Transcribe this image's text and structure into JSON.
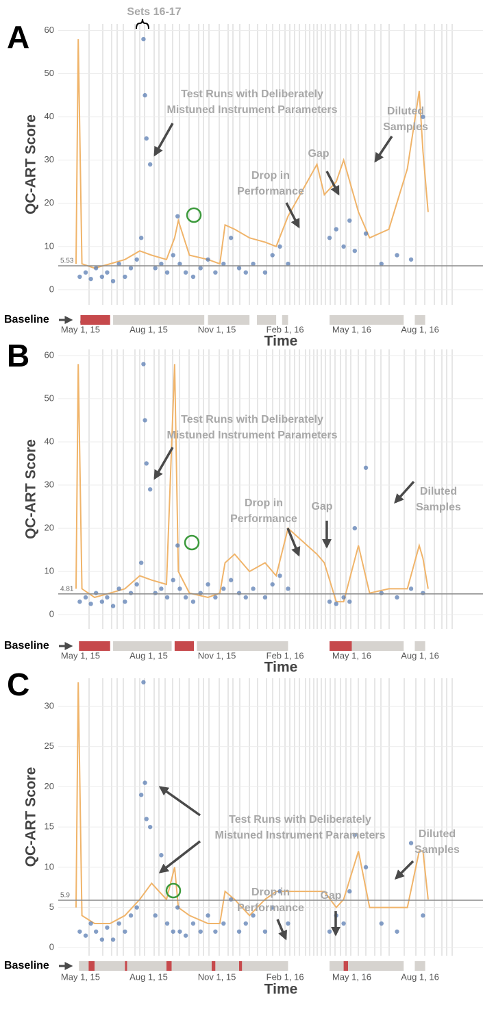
{
  "chart_data": [
    {
      "type": "scatter",
      "panel": "A",
      "y_label": "QC-ART Score",
      "x_label": "Time",
      "baseline_label": "Baseline",
      "xlim": [
        "2015-04-01",
        "2016-10-25"
      ],
      "xticks": [
        {
          "value": "2015-05-01",
          "label": "May 1, 15"
        },
        {
          "value": "2015-08-01",
          "label": "Aug 1, 15"
        },
        {
          "value": "2015-11-01",
          "label": "Nov 1, 15"
        },
        {
          "value": "2016-02-01",
          "label": "Feb 1, 16"
        },
        {
          "value": "2016-05-01",
          "label": "May 1, 16"
        },
        {
          "value": "2016-08-01",
          "label": "Aug 1, 16"
        }
      ],
      "ylim": [
        -3.5,
        61.5
      ],
      "yticks": [
        0,
        10,
        20,
        30,
        40,
        50,
        60
      ],
      "grid": true,
      "threshold": 5.53,
      "series": [
        {
          "type": "point",
          "color": "#5b7db3",
          "x": [
            "2015-04-30",
            "2015-05-08",
            "2015-05-15",
            "2015-05-22",
            "2015-05-30",
            "2015-06-06",
            "2015-06-14",
            "2015-06-22",
            "2015-06-30",
            "2015-07-08",
            "2015-07-16",
            "2015-07-22",
            "2015-07-25",
            "2015-07-27",
            "2015-07-29",
            "2015-08-03",
            "2015-08-10",
            "2015-08-18",
            "2015-08-26",
            "2015-09-03",
            "2015-09-09",
            "2015-09-12",
            "2015-09-20",
            "2015-09-30",
            "2015-10-10",
            "2015-10-20",
            "2015-10-30",
            "2015-11-10",
            "2015-11-20",
            "2015-12-01",
            "2015-12-10",
            "2015-12-20",
            "2016-01-05",
            "2016-01-15",
            "2016-01-25",
            "2016-02-05",
            "2016-04-01",
            "2016-04-10",
            "2016-04-20",
            "2016-04-28",
            "2016-05-05",
            "2016-05-20",
            "2016-06-10",
            "2016-07-01",
            "2016-07-20",
            "2016-08-05"
          ],
          "values": [
            3,
            4,
            2.5,
            5,
            3,
            4,
            2,
            6,
            3,
            5,
            7,
            12,
            58,
            45,
            35,
            29,
            5,
            6,
            4,
            8,
            17,
            6,
            4,
            3,
            5,
            7,
            4,
            6,
            12,
            5,
            4,
            6,
            4,
            8,
            10,
            6,
            12,
            14,
            10,
            16,
            9,
            13,
            6,
            8,
            7,
            40
          ]
        },
        {
          "type": "line",
          "color": "#f0b46a",
          "x": [
            "2015-04-25",
            "2015-04-28",
            "2015-05-03",
            "2015-05-20",
            "2015-06-10",
            "2015-06-30",
            "2015-07-20",
            "2015-08-05",
            "2015-08-25",
            "2015-09-05",
            "2015-09-10",
            "2015-09-25",
            "2015-10-20",
            "2015-11-05",
            "2015-11-12",
            "2015-11-25",
            "2015-12-15",
            "2016-01-05",
            "2016-01-20",
            "2016-02-05",
            "2016-03-15",
            "2016-03-25",
            "2016-04-10",
            "2016-04-20",
            "2016-05-10",
            "2016-05-25",
            "2016-06-20",
            "2016-07-15",
            "2016-07-31",
            "2016-08-05",
            "2016-08-12"
          ],
          "values": [
            6,
            58,
            6,
            5,
            6,
            7,
            9,
            8,
            7,
            12,
            16,
            8,
            7,
            6,
            15,
            14,
            12,
            11,
            10,
            17,
            29,
            22,
            25,
            30,
            18,
            12,
            14,
            28,
            46,
            32,
            18
          ]
        }
      ],
      "baseline": [
        {
          "start": "2015-05-01",
          "end": "2015-06-10",
          "in_baseline": true
        },
        {
          "start": "2015-06-14",
          "end": "2015-10-15",
          "in_baseline": false
        },
        {
          "start": "2015-10-20",
          "end": "2015-12-15",
          "in_baseline": false
        },
        {
          "start": "2015-12-25",
          "end": "2016-01-20",
          "in_baseline": false
        },
        {
          "start": "2016-01-28",
          "end": "2016-02-05",
          "in_baseline": false
        },
        {
          "start": "2016-04-01",
          "end": "2016-07-10",
          "in_baseline": false
        },
        {
          "start": "2016-07-25",
          "end": "2016-08-08",
          "in_baseline": false
        }
      ],
      "annotations": [
        {
          "lines": [
            "Sets 16-17"
          ]
        },
        {
          "lines": [
            "Test Runs with Deliberately",
            "Mistuned Instrument Parameters"
          ]
        },
        {
          "lines": [
            "Drop in",
            "Performance"
          ]
        },
        {
          "lines": [
            "Gap"
          ]
        },
        {
          "lines": [
            "Diluted",
            "Samples"
          ]
        }
      ]
    },
    {
      "type": "scatter",
      "panel": "B",
      "y_label": "QC-ART Score",
      "x_label": "Time",
      "baseline_label": "Baseline",
      "xlim": [
        "2015-04-01",
        "2016-10-25"
      ],
      "xticks": [
        {
          "value": "2015-05-01",
          "label": "May 1, 15"
        },
        {
          "value": "2015-08-01",
          "label": "Aug 1, 15"
        },
        {
          "value": "2015-11-01",
          "label": "Nov 1, 15"
        },
        {
          "value": "2016-02-01",
          "label": "Feb 1, 16"
        },
        {
          "value": "2016-05-01",
          "label": "May 1, 16"
        },
        {
          "value": "2016-08-01",
          "label": "Aug 1, 16"
        }
      ],
      "ylim": [
        -3.3,
        61.4
      ],
      "yticks": [
        0,
        10,
        20,
        30,
        40,
        50,
        60
      ],
      "grid": true,
      "threshold": 4.81,
      "series": [
        {
          "type": "point",
          "color": "#5b7db3",
          "x": [
            "2015-04-30",
            "2015-05-08",
            "2015-05-15",
            "2015-05-22",
            "2015-05-30",
            "2015-06-06",
            "2015-06-14",
            "2015-06-22",
            "2015-06-30",
            "2015-07-08",
            "2015-07-16",
            "2015-07-22",
            "2015-07-25",
            "2015-07-27",
            "2015-07-29",
            "2015-08-03",
            "2015-08-10",
            "2015-08-18",
            "2015-08-26",
            "2015-09-03",
            "2015-09-09",
            "2015-09-12",
            "2015-09-20",
            "2015-09-30",
            "2015-10-10",
            "2015-10-20",
            "2015-10-30",
            "2015-11-10",
            "2015-11-20",
            "2015-12-01",
            "2015-12-10",
            "2015-12-20",
            "2016-01-05",
            "2016-01-15",
            "2016-01-25",
            "2016-02-05",
            "2016-04-01",
            "2016-04-10",
            "2016-04-20",
            "2016-04-28",
            "2016-05-05",
            "2016-05-20",
            "2016-06-10",
            "2016-07-01",
            "2016-07-20",
            "2016-08-05"
          ],
          "values": [
            3,
            4,
            2.5,
            5,
            3,
            4,
            2,
            6,
            3,
            5,
            7,
            12,
            58,
            45,
            35,
            29,
            5,
            6,
            4,
            8,
            16,
            6,
            4,
            3,
            5,
            7,
            4,
            6,
            8,
            5,
            4,
            6,
            4,
            7,
            9,
            6,
            3,
            2.5,
            4,
            3,
            20,
            34,
            5,
            4,
            6,
            5
          ]
        },
        {
          "type": "line",
          "color": "#f0b46a",
          "x": [
            "2015-04-25",
            "2015-04-28",
            "2015-05-03",
            "2015-05-20",
            "2015-06-10",
            "2015-06-30",
            "2015-07-20",
            "2015-08-05",
            "2015-08-25",
            "2015-09-05",
            "2015-09-10",
            "2015-09-25",
            "2015-10-20",
            "2015-11-05",
            "2015-11-12",
            "2015-11-25",
            "2015-12-15",
            "2016-01-05",
            "2016-01-20",
            "2016-02-05",
            "2016-03-15",
            "2016-03-25",
            "2016-04-10",
            "2016-04-20",
            "2016-05-10",
            "2016-05-25",
            "2016-06-20",
            "2016-07-15",
            "2016-07-31",
            "2016-08-05",
            "2016-08-12"
          ],
          "values": [
            6,
            58,
            6,
            4,
            5,
            6,
            9,
            8,
            7,
            58,
            10,
            5,
            4,
            5,
            12,
            14,
            10,
            12,
            9,
            20,
            14,
            12,
            3,
            3,
            16,
            5,
            6,
            6,
            16,
            13,
            6
          ]
        }
      ],
      "baseline": [
        {
          "start": "2015-04-29",
          "end": "2015-06-10",
          "in_baseline": true
        },
        {
          "start": "2015-06-14",
          "end": "2015-09-01",
          "in_baseline": false
        },
        {
          "start": "2015-09-05",
          "end": "2015-10-01",
          "in_baseline": true
        },
        {
          "start": "2015-10-05",
          "end": "2016-02-05",
          "in_baseline": false
        },
        {
          "start": "2016-04-01",
          "end": "2016-05-01",
          "in_baseline": true
        },
        {
          "start": "2016-05-01",
          "end": "2016-07-10",
          "in_baseline": false
        },
        {
          "start": "2016-07-25",
          "end": "2016-08-08",
          "in_baseline": false
        }
      ],
      "annotations": [
        {
          "lines": [
            "Test Runs with Deliberately",
            "Mistuned Instrument Parameters"
          ]
        },
        {
          "lines": [
            "Drop in",
            "Performance"
          ]
        },
        {
          "lines": [
            "Gap"
          ]
        },
        {
          "lines": [
            "Diluted",
            "Samples"
          ]
        }
      ]
    },
    {
      "type": "scatter",
      "panel": "C",
      "y_label": "QC-ART Score",
      "x_label": "Time",
      "baseline_label": "Baseline",
      "xlim": [
        "2015-04-01",
        "2016-10-25"
      ],
      "xticks": [
        {
          "value": "2015-05-01",
          "label": "May 1, 15"
        },
        {
          "value": "2015-08-01",
          "label": "Aug 1, 15"
        },
        {
          "value": "2015-11-01",
          "label": "Nov 1, 15"
        },
        {
          "value": "2016-02-01",
          "label": "Feb 1, 16"
        },
        {
          "value": "2016-05-01",
          "label": "May 1, 16"
        },
        {
          "value": "2016-08-01",
          "label": "Aug 1, 16"
        }
      ],
      "ylim": [
        -1,
        33.5
      ],
      "yticks": [
        0,
        5,
        10,
        15,
        20,
        25,
        30
      ],
      "grid": true,
      "threshold": 5.9,
      "series": [
        {
          "type": "point",
          "color": "#5b7db3",
          "x": [
            "2015-04-30",
            "2015-05-08",
            "2015-05-15",
            "2015-05-22",
            "2015-05-30",
            "2015-06-06",
            "2015-06-14",
            "2015-06-22",
            "2015-06-30",
            "2015-07-08",
            "2015-07-16",
            "2015-07-22",
            "2015-07-25",
            "2015-07-27",
            "2015-07-29",
            "2015-08-03",
            "2015-08-10",
            "2015-08-18",
            "2015-08-26",
            "2015-09-03",
            "2015-09-09",
            "2015-09-12",
            "2015-09-20",
            "2015-09-30",
            "2015-10-10",
            "2015-10-20",
            "2015-10-30",
            "2015-11-10",
            "2015-11-20",
            "2015-12-01",
            "2015-12-10",
            "2015-12-20",
            "2016-01-05",
            "2016-01-15",
            "2016-01-25",
            "2016-02-05",
            "2016-04-01",
            "2016-04-10",
            "2016-04-20",
            "2016-04-28",
            "2016-05-05",
            "2016-05-20",
            "2016-06-10",
            "2016-07-01",
            "2016-07-20",
            "2016-08-05"
          ],
          "values": [
            2,
            1.5,
            3,
            2,
            1,
            2.5,
            1,
            3,
            2,
            4,
            5,
            19,
            33,
            20.5,
            16,
            15,
            4,
            11.5,
            3,
            2,
            5,
            2,
            1.5,
            3,
            2,
            4,
            2,
            3,
            6,
            2,
            3,
            4,
            2,
            5,
            7,
            3,
            2,
            4,
            3,
            7,
            14,
            10,
            3,
            2,
            13,
            4
          ]
        },
        {
          "type": "line",
          "color": "#f0b46a",
          "x": [
            "2015-04-25",
            "2015-04-28",
            "2015-05-03",
            "2015-05-20",
            "2015-06-10",
            "2015-06-30",
            "2015-07-20",
            "2015-08-05",
            "2015-08-25",
            "2015-09-05",
            "2015-09-10",
            "2015-09-25",
            "2015-10-20",
            "2015-11-05",
            "2015-11-12",
            "2015-11-25",
            "2015-12-15",
            "2016-01-05",
            "2016-01-20",
            "2016-02-05",
            "2016-03-15",
            "2016-03-25",
            "2016-04-10",
            "2016-04-20",
            "2016-05-10",
            "2016-05-25",
            "2016-06-20",
            "2016-07-15",
            "2016-07-31",
            "2016-08-05",
            "2016-08-12"
          ],
          "values": [
            5,
            33,
            4,
            3,
            3,
            4,
            6,
            8,
            6,
            10,
            5,
            4,
            3,
            3,
            7,
            6,
            4,
            6,
            7,
            7,
            7,
            7,
            5,
            6,
            12,
            5,
            5,
            5,
            12,
            12,
            6
          ]
        }
      ],
      "baseline": [
        {
          "start": "2015-04-29",
          "end": "2015-05-12",
          "in_baseline": false
        },
        {
          "start": "2015-05-12",
          "end": "2015-05-20",
          "in_baseline": true
        },
        {
          "start": "2015-05-20",
          "end": "2015-06-30",
          "in_baseline": false
        },
        {
          "start": "2015-06-30",
          "end": "2015-07-03",
          "in_baseline": true
        },
        {
          "start": "2015-07-03",
          "end": "2015-08-25",
          "in_baseline": false
        },
        {
          "start": "2015-08-25",
          "end": "2015-09-01",
          "in_baseline": true
        },
        {
          "start": "2015-09-01",
          "end": "2015-10-25",
          "in_baseline": false
        },
        {
          "start": "2015-10-25",
          "end": "2015-10-30",
          "in_baseline": true
        },
        {
          "start": "2015-10-30",
          "end": "2015-12-01",
          "in_baseline": false
        },
        {
          "start": "2015-12-01",
          "end": "2015-12-05",
          "in_baseline": true
        },
        {
          "start": "2015-12-05",
          "end": "2016-02-05",
          "in_baseline": false
        },
        {
          "start": "2016-04-01",
          "end": "2016-04-20",
          "in_baseline": false
        },
        {
          "start": "2016-04-20",
          "end": "2016-04-26",
          "in_baseline": true
        },
        {
          "start": "2016-04-26",
          "end": "2016-07-10",
          "in_baseline": false
        },
        {
          "start": "2016-07-25",
          "end": "2016-08-08",
          "in_baseline": false
        }
      ],
      "annotations": [
        {
          "lines": [
            "Test Runs with Deliberately",
            "Mistuned Instrument Parameters"
          ]
        },
        {
          "lines": [
            "Drop in",
            "Performance"
          ]
        },
        {
          "lines": [
            "Gap"
          ]
        },
        {
          "lines": [
            "Diluted",
            "Samples"
          ]
        }
      ]
    }
  ]
}
